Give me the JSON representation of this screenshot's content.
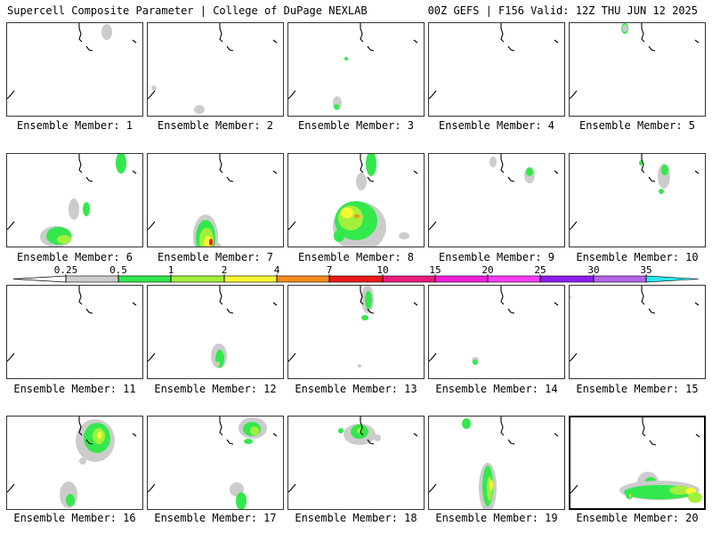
{
  "header": {
    "left": "Supercell Composite Parameter | College of DuPage NEXLAB",
    "right": "00Z GEFS | F156 Valid: 12Z THU JUN 12 2025"
  },
  "legend": {
    "ticks": [
      "0.25",
      "0.5",
      "1",
      "2",
      "4",
      "7",
      "10",
      "15",
      "20",
      "25",
      "30",
      "35"
    ],
    "colors": [
      "#cccccc",
      "#33e84d",
      "#a2f03c",
      "#f7f731",
      "#f78a1e",
      "#ee1a1a",
      "#ec1b7d",
      "#f21ed7",
      "#f73cf7",
      "#8c1ef0",
      "#b165e6",
      "#2ae8f2"
    ]
  },
  "panels": [
    {
      "member": 1,
      "caption": "Ensemble Member: 1"
    },
    {
      "member": 2,
      "caption": "Ensemble Member: 2"
    },
    {
      "member": 3,
      "caption": "Ensemble Member: 3"
    },
    {
      "member": 4,
      "caption": "Ensemble Member: 4"
    },
    {
      "member": 5,
      "caption": "Ensemble Member: 5"
    },
    {
      "member": 6,
      "caption": "Ensemble Member: 6"
    },
    {
      "member": 7,
      "caption": "Ensemble Member: 7"
    },
    {
      "member": 8,
      "caption": "Ensemble Member: 8"
    },
    {
      "member": 9,
      "caption": "Ensemble Member: 9"
    },
    {
      "member": 10,
      "caption": "Ensemble Member: 10"
    },
    {
      "member": 11,
      "caption": "Ensemble Member: 11"
    },
    {
      "member": 12,
      "caption": "Ensemble Member: 12"
    },
    {
      "member": 13,
      "caption": "Ensemble Member: 13"
    },
    {
      "member": 14,
      "caption": "Ensemble Member: 14"
    },
    {
      "member": 15,
      "caption": "Ensemble Member: 15"
    },
    {
      "member": 16,
      "caption": "Ensemble Member: 16"
    },
    {
      "member": 17,
      "caption": "Ensemble Member: 17"
    },
    {
      "member": 18,
      "caption": "Ensemble Member: 18"
    },
    {
      "member": 19,
      "caption": "Ensemble Member: 19"
    },
    {
      "member": 20,
      "caption": "Ensemble Member: 20"
    }
  ]
}
